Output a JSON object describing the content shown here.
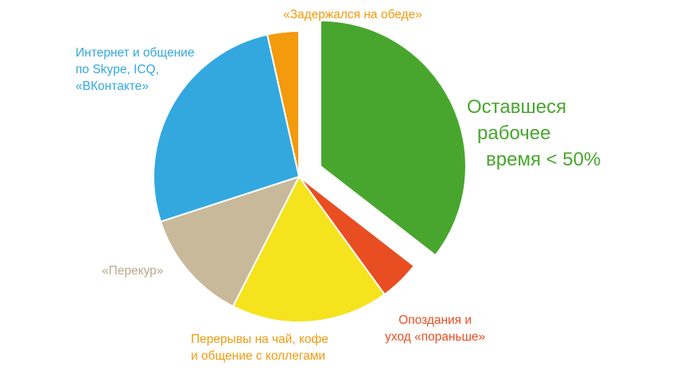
{
  "chart_data": {
    "type": "pie",
    "title": "",
    "slices": [
      {
        "label_lines": [
          "Оставшеся",
          "рабочее",
          "время < 50%"
        ],
        "value": 35.5,
        "color": "#48a62e",
        "exploded": true
      },
      {
        "label_lines": [
          "Опоздания и",
          "уход «пораньше»"
        ],
        "value": 4.5,
        "color": "#e84e22",
        "exploded": false
      },
      {
        "label_lines": [
          "Перерывы на чай, кофе",
          "и общение с коллегами"
        ],
        "value": 17.5,
        "color": "#f5e31e",
        "exploded": false
      },
      {
        "label_lines": [
          "«Перекур»"
        ],
        "value": 12.5,
        "color": "#c8b99a",
        "exploded": false
      },
      {
        "label_lines": [
          "Интернет и общение",
          "по Skype, ICQ,",
          "«ВКонтакте»"
        ],
        "value": 26.5,
        "color": "#33a8de",
        "exploded": false
      },
      {
        "label_lines": [
          "«Задержался на обеде»"
        ],
        "value": 3.5,
        "color": "#f39a0d",
        "exploded": false
      }
    ]
  }
}
